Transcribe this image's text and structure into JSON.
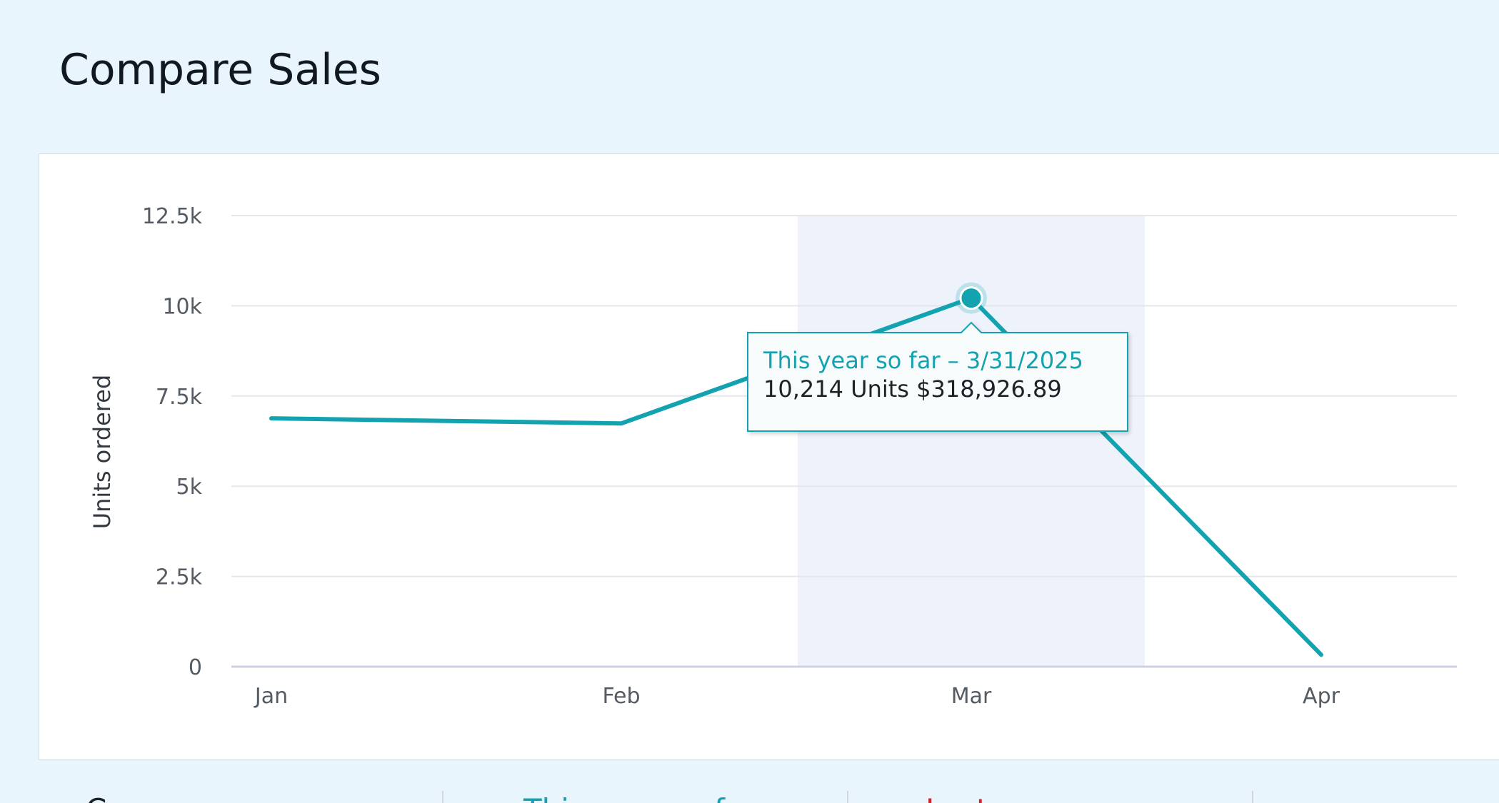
{
  "page": {
    "title": "Compare Sales"
  },
  "chart_data": {
    "type": "line",
    "ylabel": "Units ordered",
    "xlabel": "",
    "categories": [
      "Jan",
      "Feb",
      "Mar",
      "Apr"
    ],
    "series": [
      {
        "values": [
          6880,
          6740,
          10214,
          330
        ],
        "color": "#13a3b0"
      }
    ],
    "ylim": [
      0,
      12500
    ],
    "yticks": [
      0,
      2500,
      5000,
      7500,
      10000,
      12500
    ],
    "ytick_labels": [
      "0",
      "2.5k",
      "5k",
      "7.5k",
      "10k",
      "12.5k"
    ],
    "grid": true,
    "highlighted_category": "Mar",
    "tooltip": {
      "title": "This year so far – 3/31/2025",
      "body": "10,214 Units $318,926.89"
    }
  },
  "summary_tabs": [
    {
      "label": "C",
      "color": "#1c2228"
    },
    {
      "label": "This year so far",
      "color": "#13a3b0"
    },
    {
      "label": "Last year",
      "color": "#d4202a"
    },
    {
      "label": "",
      "color": "#1c2228"
    }
  ],
  "colors": {
    "background": "#e9f5fd",
    "card": "#ffffff",
    "line": "#13a3b0",
    "highlight_band": "#eef2fa",
    "grid": "#e3e6ea"
  }
}
